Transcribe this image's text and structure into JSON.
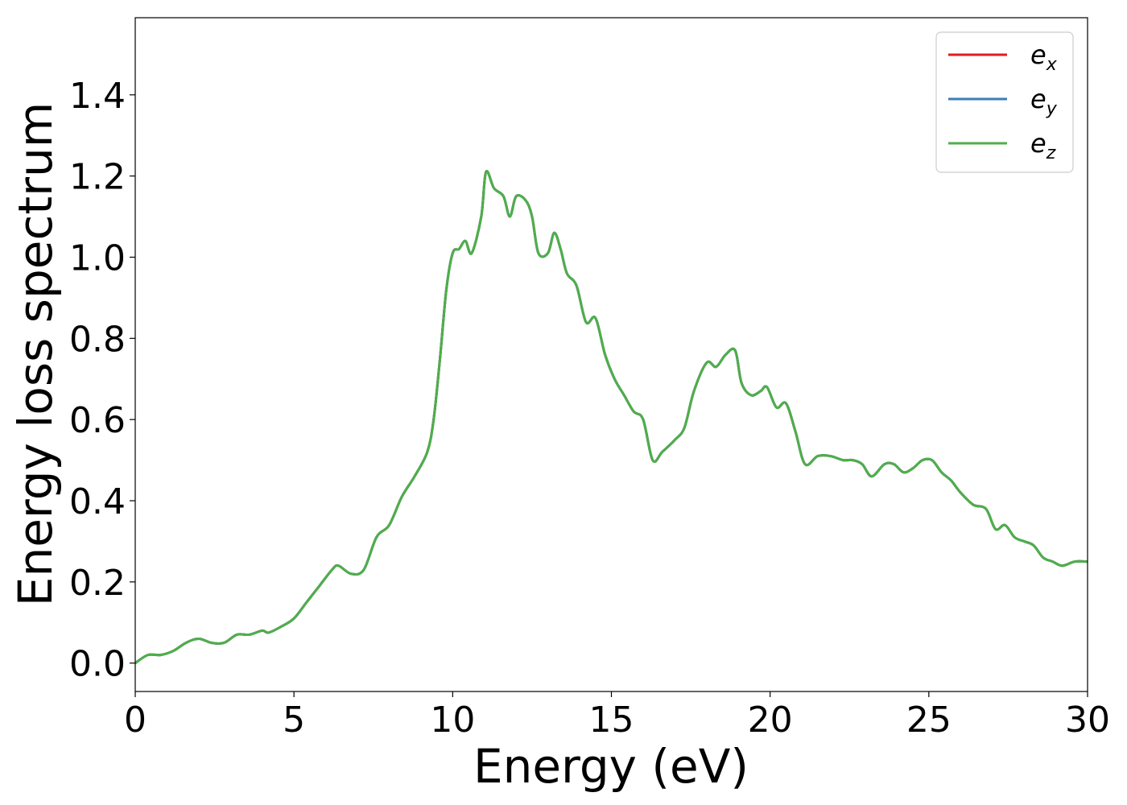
{
  "chart_data": {
    "type": "line",
    "xlabel": "Energy (eV)",
    "ylabel": "Energy loss spectrum",
    "xlim": [
      0,
      30
    ],
    "ylim": [
      -0.07,
      1.59
    ],
    "xticks": [
      0,
      5,
      10,
      15,
      20,
      25,
      30
    ],
    "xtick_labels": [
      "0",
      "5",
      "10",
      "15",
      "20",
      "25",
      "30"
    ],
    "yticks": [
      0.0,
      0.2,
      0.4,
      0.6,
      0.8,
      1.0,
      1.2,
      1.4
    ],
    "ytick_labels": [
      "0.0",
      "0.2",
      "0.4",
      "0.6",
      "0.8",
      "1.0",
      "1.2",
      "1.4"
    ],
    "grid": false,
    "legend_position": "top-right",
    "series": [
      {
        "name": "e_x",
        "label_base": "e",
        "label_sub": "x",
        "color": "#e41a1c",
        "x": [
          0,
          0.4,
          0.8,
          1.2,
          1.6,
          2.0,
          2.4,
          2.8,
          3.2,
          3.6,
          4.0,
          4.2,
          4.6,
          5.0,
          5.4,
          5.8,
          6.2,
          6.4,
          6.8,
          7.2,
          7.6,
          8.0,
          8.4,
          8.8,
          9.2,
          9.4,
          9.6,
          9.8,
          10.0,
          10.2,
          10.4,
          10.6,
          10.9,
          11.05,
          11.3,
          11.6,
          11.8,
          12.0,
          12.3,
          12.5,
          12.7,
          13.0,
          13.2,
          13.4,
          13.6,
          13.9,
          14.2,
          14.5,
          14.8,
          15.1,
          15.4,
          15.7,
          16.0,
          16.3,
          16.6,
          17.0,
          17.3,
          17.6,
          18.0,
          18.3,
          18.6,
          18.9,
          19.1,
          19.4,
          19.7,
          19.9,
          20.2,
          20.5,
          20.8,
          21.1,
          21.5,
          21.9,
          22.3,
          22.6,
          22.9,
          23.2,
          23.6,
          23.9,
          24.2,
          24.5,
          24.8,
          25.1,
          25.4,
          25.7,
          26.0,
          26.4,
          26.8,
          27.1,
          27.4,
          27.7,
          28.0,
          28.3,
          28.6,
          28.9,
          29.2,
          29.6,
          30.0
        ],
        "y": [
          0.0,
          0.02,
          0.02,
          0.03,
          0.05,
          0.06,
          0.05,
          0.05,
          0.07,
          0.07,
          0.08,
          0.075,
          0.09,
          0.11,
          0.15,
          0.19,
          0.23,
          0.24,
          0.22,
          0.23,
          0.31,
          0.34,
          0.41,
          0.46,
          0.52,
          0.6,
          0.75,
          0.92,
          1.01,
          1.02,
          1.04,
          1.01,
          1.1,
          1.21,
          1.17,
          1.15,
          1.1,
          1.15,
          1.14,
          1.1,
          1.01,
          1.01,
          1.06,
          1.02,
          0.96,
          0.93,
          0.84,
          0.85,
          0.76,
          0.7,
          0.66,
          0.62,
          0.6,
          0.5,
          0.52,
          0.55,
          0.58,
          0.67,
          0.74,
          0.73,
          0.76,
          0.77,
          0.69,
          0.66,
          0.67,
          0.68,
          0.63,
          0.64,
          0.57,
          0.49,
          0.51,
          0.51,
          0.5,
          0.5,
          0.49,
          0.46,
          0.49,
          0.49,
          0.47,
          0.48,
          0.5,
          0.5,
          0.47,
          0.45,
          0.42,
          0.39,
          0.38,
          0.33,
          0.34,
          0.31,
          0.3,
          0.29,
          0.26,
          0.25,
          0.24,
          0.25,
          0.25
        ]
      },
      {
        "name": "e_y",
        "label_base": "e",
        "label_sub": "y",
        "color": "#377eb8",
        "x": [
          0,
          0.4,
          0.8,
          1.2,
          1.6,
          2.0,
          2.4,
          2.8,
          3.2,
          3.6,
          4.0,
          4.2,
          4.6,
          5.0,
          5.4,
          5.8,
          6.2,
          6.4,
          6.8,
          7.2,
          7.6,
          8.0,
          8.4,
          8.8,
          9.2,
          9.4,
          9.6,
          9.8,
          10.0,
          10.2,
          10.4,
          10.6,
          10.9,
          11.05,
          11.3,
          11.6,
          11.8,
          12.0,
          12.3,
          12.5,
          12.7,
          13.0,
          13.2,
          13.4,
          13.6,
          13.9,
          14.2,
          14.5,
          14.8,
          15.1,
          15.4,
          15.7,
          16.0,
          16.3,
          16.6,
          17.0,
          17.3,
          17.6,
          18.0,
          18.3,
          18.6,
          18.9,
          19.1,
          19.4,
          19.7,
          19.9,
          20.2,
          20.5,
          20.8,
          21.1,
          21.5,
          21.9,
          22.3,
          22.6,
          22.9,
          23.2,
          23.6,
          23.9,
          24.2,
          24.5,
          24.8,
          25.1,
          25.4,
          25.7,
          26.0,
          26.4,
          26.8,
          27.1,
          27.4,
          27.7,
          28.0,
          28.3,
          28.6,
          28.9,
          29.2,
          29.6,
          30.0
        ],
        "y": [
          0.0,
          0.02,
          0.02,
          0.03,
          0.05,
          0.06,
          0.05,
          0.05,
          0.07,
          0.07,
          0.08,
          0.075,
          0.09,
          0.11,
          0.15,
          0.19,
          0.23,
          0.24,
          0.22,
          0.23,
          0.31,
          0.34,
          0.41,
          0.46,
          0.52,
          0.6,
          0.75,
          0.92,
          1.01,
          1.02,
          1.04,
          1.01,
          1.1,
          1.21,
          1.17,
          1.15,
          1.1,
          1.15,
          1.14,
          1.1,
          1.01,
          1.01,
          1.06,
          1.02,
          0.96,
          0.93,
          0.84,
          0.85,
          0.76,
          0.7,
          0.66,
          0.62,
          0.6,
          0.5,
          0.52,
          0.55,
          0.58,
          0.67,
          0.74,
          0.73,
          0.76,
          0.77,
          0.69,
          0.66,
          0.67,
          0.68,
          0.63,
          0.64,
          0.57,
          0.49,
          0.51,
          0.51,
          0.5,
          0.5,
          0.49,
          0.46,
          0.49,
          0.49,
          0.47,
          0.48,
          0.5,
          0.5,
          0.47,
          0.45,
          0.42,
          0.39,
          0.38,
          0.33,
          0.34,
          0.31,
          0.3,
          0.29,
          0.26,
          0.25,
          0.24,
          0.25,
          0.25
        ]
      },
      {
        "name": "e_z",
        "label_base": "e",
        "label_sub": "z",
        "color": "#4daf4a",
        "x": [
          0,
          0.4,
          0.8,
          1.2,
          1.6,
          2.0,
          2.4,
          2.8,
          3.2,
          3.6,
          4.0,
          4.2,
          4.6,
          5.0,
          5.4,
          5.8,
          6.2,
          6.4,
          6.8,
          7.2,
          7.6,
          8.0,
          8.4,
          8.8,
          9.2,
          9.4,
          9.6,
          9.8,
          10.0,
          10.2,
          10.4,
          10.6,
          10.9,
          11.05,
          11.3,
          11.6,
          11.8,
          12.0,
          12.3,
          12.5,
          12.7,
          13.0,
          13.2,
          13.4,
          13.6,
          13.9,
          14.2,
          14.5,
          14.8,
          15.1,
          15.4,
          15.7,
          16.0,
          16.3,
          16.6,
          17.0,
          17.3,
          17.6,
          18.0,
          18.3,
          18.6,
          18.9,
          19.1,
          19.4,
          19.7,
          19.9,
          20.2,
          20.5,
          20.8,
          21.1,
          21.5,
          21.9,
          22.3,
          22.6,
          22.9,
          23.2,
          23.6,
          23.9,
          24.2,
          24.5,
          24.8,
          25.1,
          25.4,
          25.7,
          26.0,
          26.4,
          26.8,
          27.1,
          27.4,
          27.7,
          28.0,
          28.3,
          28.6,
          28.9,
          29.2,
          29.6,
          30.0
        ],
        "y": [
          0.0,
          0.02,
          0.02,
          0.03,
          0.05,
          0.06,
          0.05,
          0.05,
          0.07,
          0.07,
          0.08,
          0.075,
          0.09,
          0.11,
          0.15,
          0.19,
          0.23,
          0.24,
          0.22,
          0.23,
          0.31,
          0.34,
          0.41,
          0.46,
          0.52,
          0.6,
          0.75,
          0.92,
          1.01,
          1.02,
          1.04,
          1.01,
          1.1,
          1.21,
          1.17,
          1.15,
          1.1,
          1.15,
          1.14,
          1.1,
          1.01,
          1.01,
          1.06,
          1.02,
          0.96,
          0.93,
          0.84,
          0.85,
          0.76,
          0.7,
          0.66,
          0.62,
          0.6,
          0.5,
          0.52,
          0.55,
          0.58,
          0.67,
          0.74,
          0.73,
          0.76,
          0.77,
          0.69,
          0.66,
          0.67,
          0.68,
          0.63,
          0.64,
          0.57,
          0.49,
          0.51,
          0.51,
          0.5,
          0.5,
          0.49,
          0.46,
          0.49,
          0.49,
          0.47,
          0.48,
          0.5,
          0.5,
          0.47,
          0.45,
          0.42,
          0.39,
          0.38,
          0.33,
          0.34,
          0.31,
          0.3,
          0.29,
          0.26,
          0.25,
          0.24,
          0.25,
          0.25
        ]
      }
    ]
  }
}
